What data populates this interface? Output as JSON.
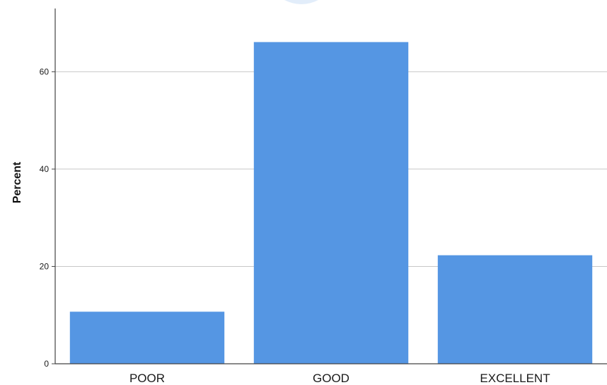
{
  "chart_data": {
    "type": "bar",
    "title": "",
    "xlabel": "",
    "ylabel": "Percent",
    "categories": [
      "POOR",
      "GOOD",
      "EXCELLENT"
    ],
    "values": [
      10.7,
      66.1,
      22.3
    ],
    "ylim": [
      0,
      73
    ],
    "yticks": [
      0,
      20,
      40,
      60
    ],
    "grid": true,
    "colors": {
      "bar": "#5596e3",
      "grid": "#c8c8c8",
      "axis": "#444444"
    }
  }
}
